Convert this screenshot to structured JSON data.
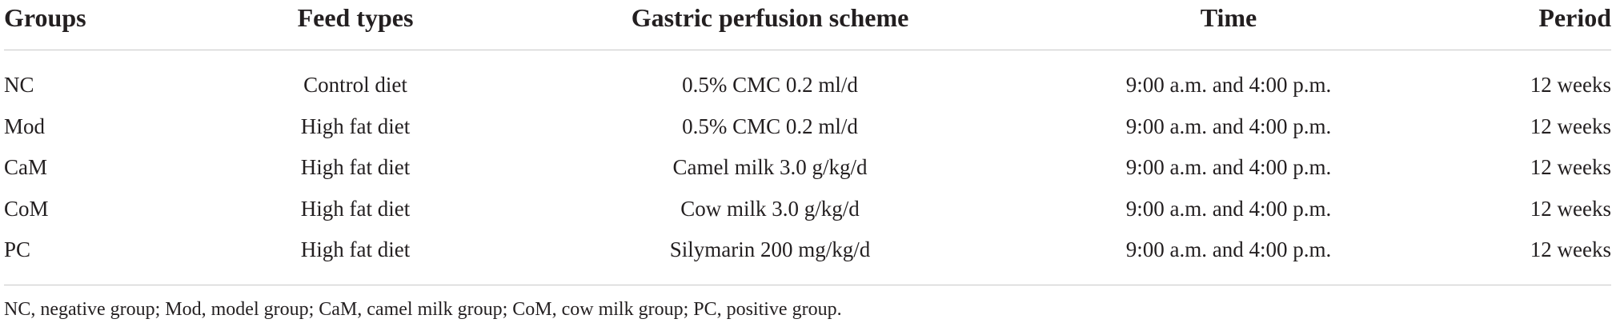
{
  "table": {
    "headers": [
      "Groups",
      "Feed types",
      "Gastric perfusion scheme",
      "Time",
      "Period"
    ],
    "rows": [
      [
        "NC",
        "Control diet",
        "0.5% CMC 0.2 ml/d",
        "9:00 a.m. and 4:00 p.m.",
        "12 weeks"
      ],
      [
        "Mod",
        "High fat diet",
        "0.5% CMC 0.2 ml/d",
        "9:00 a.m. and 4:00 p.m.",
        "12 weeks"
      ],
      [
        "CaM",
        "High fat diet",
        "Camel milk 3.0 g/kg/d",
        "9:00 a.m. and 4:00 p.m.",
        "12 weeks"
      ],
      [
        "CoM",
        "High fat diet",
        "Cow milk 3.0 g/kg/d",
        "9:00 a.m. and 4:00 p.m.",
        "12 weeks"
      ],
      [
        "PC",
        "High fat diet",
        "Silymarin 200 mg/kg/d",
        "9:00 a.m. and 4:00 p.m.",
        "12 weeks"
      ]
    ],
    "footnote": "NC, negative group; Mod, model group; CaM, camel milk group; CoM, cow milk group; PC, positive group."
  },
  "colors": {
    "text": "#231f20",
    "rule": "#c8c8c8",
    "background": "#ffffff"
  }
}
